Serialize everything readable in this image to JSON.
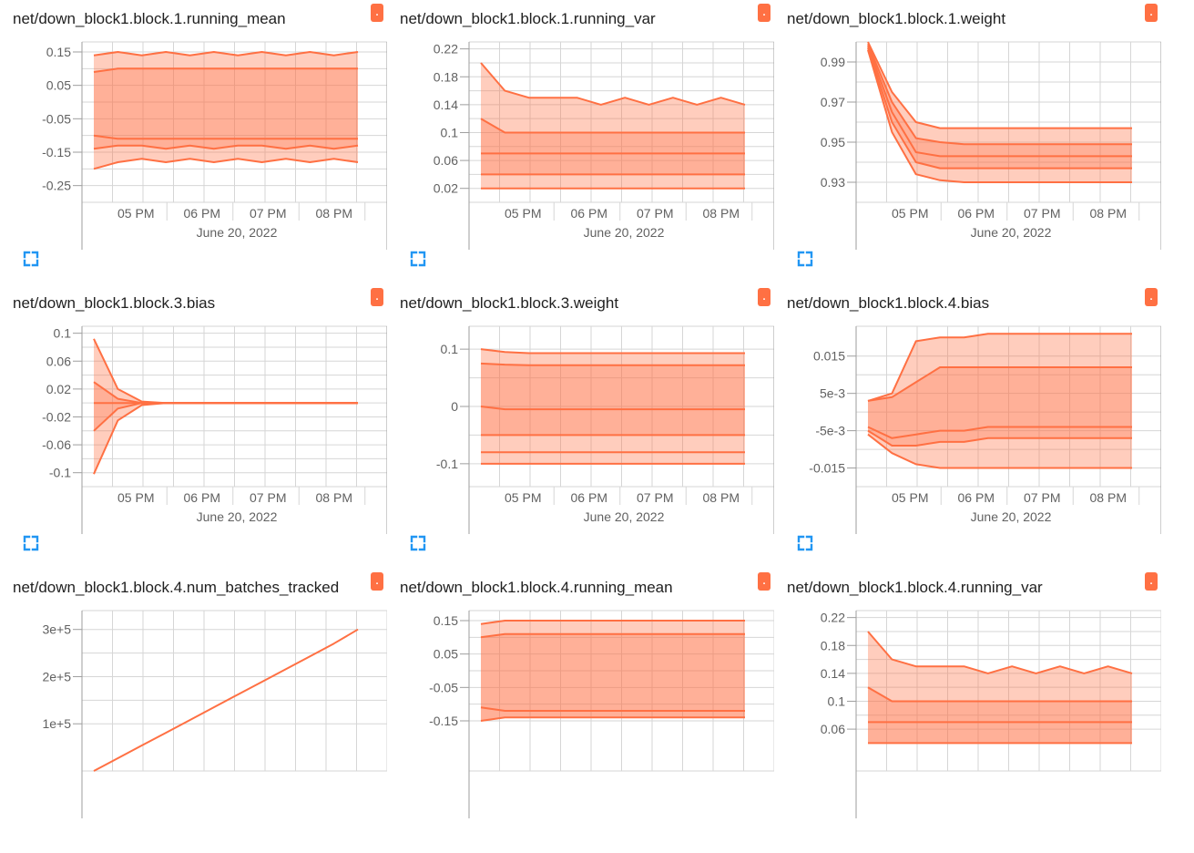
{
  "colors": {
    "series": "#ff7043",
    "grid": "#d6d6d6",
    "axis": "#9e9e9e",
    "text": "#616161",
    "expand": "#2196f3"
  },
  "cards": [
    {
      "title": "net/down_block1.block.1.running_mean",
      "badge": ".",
      "chart_data": {
        "type": "area",
        "xlabel": "June 20, 2022",
        "x_ticks": [
          "05 PM",
          "06 PM",
          "07 PM",
          "08 PM"
        ],
        "y_ticks": [
          "0.15",
          "0.05",
          "-0.05",
          "-0.15",
          "-0.25"
        ],
        "ylim": [
          -0.3,
          0.18
        ],
        "grid": true,
        "legend": "none",
        "series": [
          {
            "values": [
              0.14,
              0.15,
              0.14,
              0.15,
              0.14,
              0.15,
              0.14,
              0.15,
              0.14,
              0.15,
              0.14,
              0.15
            ]
          },
          {
            "values": [
              0.09,
              0.1,
              0.1,
              0.1,
              0.1,
              0.1,
              0.1,
              0.1,
              0.1,
              0.1,
              0.1,
              0.1
            ]
          },
          {
            "values": [
              -0.1,
              -0.11,
              -0.11,
              -0.11,
              -0.11,
              -0.11,
              -0.11,
              -0.11,
              -0.11,
              -0.11,
              -0.11,
              -0.11
            ]
          },
          {
            "values": [
              -0.14,
              -0.13,
              -0.13,
              -0.14,
              -0.13,
              -0.14,
              -0.13,
              -0.13,
              -0.14,
              -0.13,
              -0.14,
              -0.13
            ]
          },
          {
            "values": [
              -0.2,
              -0.18,
              -0.17,
              -0.18,
              -0.17,
              -0.18,
              -0.17,
              -0.18,
              -0.17,
              -0.18,
              -0.17,
              -0.18
            ]
          }
        ]
      }
    },
    {
      "title": "net/down_block1.block.1.running_var",
      "badge": ".",
      "chart_data": {
        "type": "area",
        "xlabel": "June 20, 2022",
        "x_ticks": [
          "05 PM",
          "06 PM",
          "07 PM",
          "08 PM"
        ],
        "y_ticks": [
          "0.22",
          "0.18",
          "0.14",
          "0.1",
          "0.06",
          "0.02"
        ],
        "ylim": [
          0.0,
          0.23
        ],
        "grid": true,
        "legend": "none",
        "series": [
          {
            "values": [
              0.2,
              0.16,
              0.15,
              0.15,
              0.15,
              0.14,
              0.15,
              0.14,
              0.15,
              0.14,
              0.15,
              0.14
            ]
          },
          {
            "values": [
              0.12,
              0.1,
              0.1,
              0.1,
              0.1,
              0.1,
              0.1,
              0.1,
              0.1,
              0.1,
              0.1,
              0.1
            ]
          },
          {
            "values": [
              0.07,
              0.07,
              0.07,
              0.07,
              0.07,
              0.07,
              0.07,
              0.07,
              0.07,
              0.07,
              0.07,
              0.07
            ]
          },
          {
            "values": [
              0.04,
              0.04,
              0.04,
              0.04,
              0.04,
              0.04,
              0.04,
              0.04,
              0.04,
              0.04,
              0.04,
              0.04
            ]
          },
          {
            "values": [
              0.02,
              0.02,
              0.02,
              0.02,
              0.02,
              0.02,
              0.02,
              0.02,
              0.02,
              0.02,
              0.02,
              0.02
            ]
          }
        ]
      }
    },
    {
      "title": "net/down_block1.block.1.weight",
      "badge": ".",
      "chart_data": {
        "type": "area",
        "xlabel": "June 20, 2022",
        "x_ticks": [
          "05 PM",
          "06 PM",
          "07 PM",
          "08 PM"
        ],
        "y_ticks": [
          "0.99",
          "0.97",
          "0.95",
          "0.93"
        ],
        "ylim": [
          0.92,
          1.0
        ],
        "grid": true,
        "legend": "none",
        "series": [
          {
            "values": [
              1.0,
              0.975,
              0.96,
              0.957,
              0.957,
              0.957,
              0.957,
              0.957,
              0.957,
              0.957,
              0.957,
              0.957
            ]
          },
          {
            "values": [
              0.999,
              0.97,
              0.952,
              0.95,
              0.949,
              0.949,
              0.949,
              0.949,
              0.949,
              0.949,
              0.949,
              0.949
            ]
          },
          {
            "values": [
              0.998,
              0.965,
              0.945,
              0.943,
              0.943,
              0.943,
              0.943,
              0.943,
              0.943,
              0.943,
              0.943,
              0.943
            ]
          },
          {
            "values": [
              0.997,
              0.96,
              0.94,
              0.937,
              0.937,
              0.937,
              0.937,
              0.937,
              0.937,
              0.937,
              0.937,
              0.937
            ]
          },
          {
            "values": [
              0.996,
              0.955,
              0.934,
              0.931,
              0.93,
              0.93,
              0.93,
              0.93,
              0.93,
              0.93,
              0.93,
              0.93
            ]
          }
        ]
      }
    },
    {
      "title": "net/down_block1.block.3.bias",
      "badge": ".",
      "chart_data": {
        "type": "area",
        "xlabel": "June 20, 2022",
        "x_ticks": [
          "05 PM",
          "06 PM",
          "07 PM",
          "08 PM"
        ],
        "y_ticks": [
          "0.1",
          "0.06",
          "0.02",
          "-0.02",
          "-0.06",
          "-0.1"
        ],
        "ylim": [
          -0.12,
          0.11
        ],
        "grid": true,
        "legend": "none",
        "series": [
          {
            "values": [
              0.092,
              0.02,
              0.002,
              0.0,
              0.0,
              0.0,
              0.0,
              0.0,
              0.0,
              0.0,
              0.0,
              0.0
            ]
          },
          {
            "values": [
              0.03,
              0.006,
              0.0,
              0.0,
              0.0,
              0.0,
              0.0,
              0.0,
              0.0,
              0.0,
              0.0,
              0.0
            ]
          },
          {
            "values": [
              0.0,
              0.0,
              0.0,
              0.0,
              0.0,
              0.0,
              0.0,
              0.0,
              0.0,
              0.0,
              0.0,
              0.0
            ]
          },
          {
            "values": [
              -0.04,
              -0.008,
              0.0,
              0.0,
              0.0,
              0.0,
              0.0,
              0.0,
              0.0,
              0.0,
              0.0,
              0.0
            ]
          },
          {
            "values": [
              -0.102,
              -0.025,
              -0.003,
              0.0,
              0.0,
              0.0,
              0.0,
              0.0,
              0.0,
              0.0,
              0.0,
              0.0
            ]
          }
        ]
      }
    },
    {
      "title": "net/down_block1.block.3.weight",
      "badge": ".",
      "chart_data": {
        "type": "area",
        "xlabel": "June 20, 2022",
        "x_ticks": [
          "05 PM",
          "06 PM",
          "07 PM",
          "08 PM"
        ],
        "y_ticks": [
          "0.1",
          "0",
          "-0.1"
        ],
        "ylim": [
          -0.14,
          0.14
        ],
        "grid": true,
        "legend": "none",
        "series": [
          {
            "values": [
              0.1,
              0.095,
              0.093,
              0.093,
              0.093,
              0.093,
              0.093,
              0.093,
              0.093,
              0.093,
              0.093,
              0.093
            ]
          },
          {
            "values": [
              0.075,
              0.073,
              0.072,
              0.072,
              0.072,
              0.072,
              0.072,
              0.072,
              0.072,
              0.072,
              0.072,
              0.072
            ]
          },
          {
            "values": [
              0.0,
              -0.005,
              -0.005,
              -0.005,
              -0.005,
              -0.005,
              -0.005,
              -0.005,
              -0.005,
              -0.005,
              -0.005,
              -0.005
            ]
          },
          {
            "values": [
              -0.05,
              -0.05,
              -0.05,
              -0.05,
              -0.05,
              -0.05,
              -0.05,
              -0.05,
              -0.05,
              -0.05,
              -0.05,
              -0.05
            ]
          },
          {
            "values": [
              -0.08,
              -0.08,
              -0.08,
              -0.08,
              -0.08,
              -0.08,
              -0.08,
              -0.08,
              -0.08,
              -0.08,
              -0.08,
              -0.08
            ]
          },
          {
            "values": [
              -0.1,
              -0.1,
              -0.1,
              -0.1,
              -0.1,
              -0.1,
              -0.1,
              -0.1,
              -0.1,
              -0.1,
              -0.1,
              -0.1
            ]
          }
        ]
      }
    },
    {
      "title": "net/down_block1.block.4.bias",
      "badge": ".",
      "chart_data": {
        "type": "area",
        "xlabel": "June 20, 2022",
        "x_ticks": [
          "05 PM",
          "06 PM",
          "07 PM",
          "08 PM"
        ],
        "y_ticks": [
          "0.015",
          "5e-3",
          "-5e-3",
          "-0.015"
        ],
        "ylim": [
          -0.02,
          0.023
        ],
        "grid": true,
        "legend": "none",
        "series": [
          {
            "values": [
              0.003,
              0.005,
              0.019,
              0.02,
              0.02,
              0.021,
              0.021,
              0.021,
              0.021,
              0.021,
              0.021,
              0.021
            ]
          },
          {
            "values": [
              0.003,
              0.004,
              0.008,
              0.012,
              0.012,
              0.012,
              0.012,
              0.012,
              0.012,
              0.012,
              0.012,
              0.012
            ]
          },
          {
            "values": [
              -0.004,
              -0.007,
              -0.006,
              -0.005,
              -0.005,
              -0.004,
              -0.004,
              -0.004,
              -0.004,
              -0.004,
              -0.004,
              -0.004
            ]
          },
          {
            "values": [
              -0.005,
              -0.009,
              -0.009,
              -0.008,
              -0.008,
              -0.007,
              -0.007,
              -0.007,
              -0.007,
              -0.007,
              -0.007,
              -0.007
            ]
          },
          {
            "values": [
              -0.006,
              -0.011,
              -0.014,
              -0.015,
              -0.015,
              -0.015,
              -0.015,
              -0.015,
              -0.015,
              -0.015,
              -0.015,
              -0.015
            ]
          }
        ]
      }
    },
    {
      "title": "net/down_block1.block.4.num_batches_tracked",
      "badge": ".",
      "chart_data": {
        "type": "line",
        "xlabel": "",
        "x_ticks": [],
        "y_ticks": [
          "3e+5",
          "2e+5",
          "1e+5"
        ],
        "ylim": [
          0,
          340000
        ],
        "grid": true,
        "legend": "none",
        "series": [
          {
            "values": [
              0,
              27000,
              54000,
              81000,
              108000,
              135000,
              162000,
              189000,
              216000,
              243000,
              270000,
              300000
            ]
          }
        ]
      }
    },
    {
      "title": "net/down_block1.block.4.running_mean",
      "badge": ".",
      "chart_data": {
        "type": "area",
        "xlabel": "",
        "x_ticks": [],
        "y_ticks": [
          "0.15",
          "0.05",
          "-0.05",
          "-0.15"
        ],
        "ylim": [
          -0.3,
          0.18
        ],
        "grid": true,
        "legend": "none",
        "series": [
          {
            "values": [
              0.14,
              0.15,
              0.15,
              0.15,
              0.15,
              0.15,
              0.15,
              0.15,
              0.15,
              0.15,
              0.15,
              0.15
            ]
          },
          {
            "values": [
              0.1,
              0.11,
              0.11,
              0.11,
              0.11,
              0.11,
              0.11,
              0.11,
              0.11,
              0.11,
              0.11,
              0.11
            ]
          },
          {
            "values": [
              -0.11,
              -0.12,
              -0.12,
              -0.12,
              -0.12,
              -0.12,
              -0.12,
              -0.12,
              -0.12,
              -0.12,
              -0.12,
              -0.12
            ]
          },
          {
            "values": [
              -0.15,
              -0.14,
              -0.14,
              -0.14,
              -0.14,
              -0.14,
              -0.14,
              -0.14,
              -0.14,
              -0.14,
              -0.14,
              -0.14
            ]
          }
        ]
      }
    },
    {
      "title": "net/down_block1.block.4.running_var",
      "badge": ".",
      "chart_data": {
        "type": "area",
        "xlabel": "",
        "x_ticks": [],
        "y_ticks": [
          "0.22",
          "0.18",
          "0.14",
          "0.1",
          "0.06"
        ],
        "ylim": [
          0.0,
          0.23
        ],
        "grid": true,
        "legend": "none",
        "series": [
          {
            "values": [
              0.2,
              0.16,
              0.15,
              0.15,
              0.15,
              0.14,
              0.15,
              0.14,
              0.15,
              0.14,
              0.15,
              0.14
            ]
          },
          {
            "values": [
              0.12,
              0.1,
              0.1,
              0.1,
              0.1,
              0.1,
              0.1,
              0.1,
              0.1,
              0.1,
              0.1,
              0.1
            ]
          },
          {
            "values": [
              0.07,
              0.07,
              0.07,
              0.07,
              0.07,
              0.07,
              0.07,
              0.07,
              0.07,
              0.07,
              0.07,
              0.07
            ]
          },
          {
            "values": [
              0.04,
              0.04,
              0.04,
              0.04,
              0.04,
              0.04,
              0.04,
              0.04,
              0.04,
              0.04,
              0.04,
              0.04
            ]
          }
        ]
      }
    }
  ]
}
